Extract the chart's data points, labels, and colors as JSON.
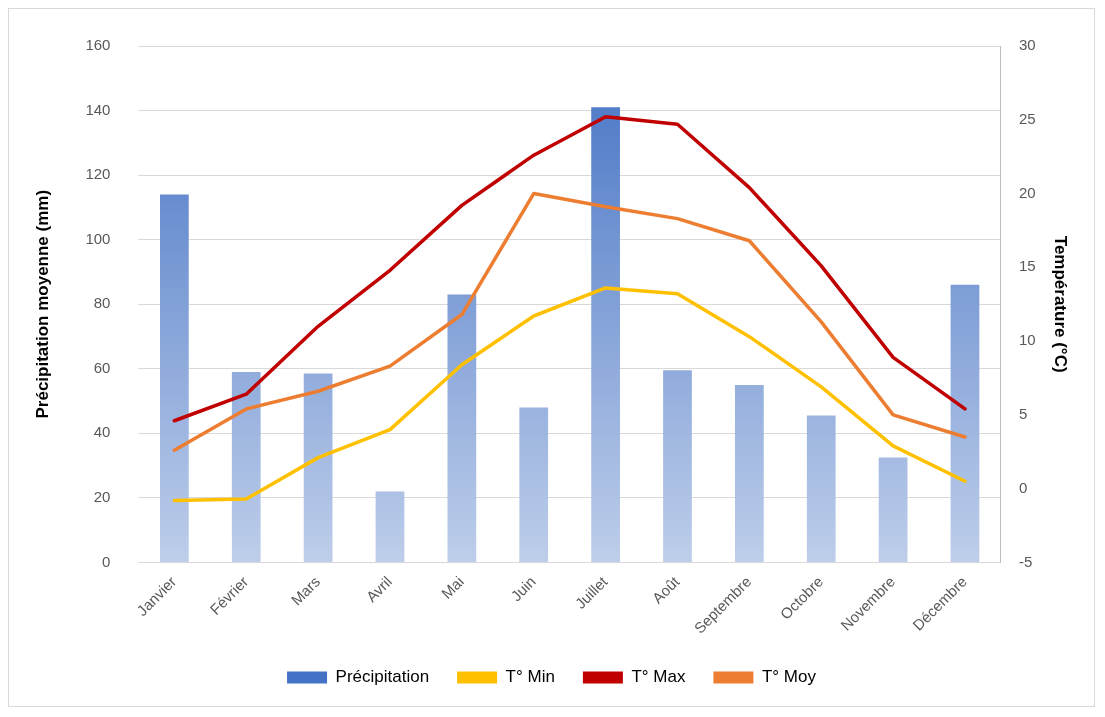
{
  "chart_data": {
    "type": "bar",
    "categories": [
      "Janvier",
      "Février",
      "Mars",
      "Avril",
      "Mai",
      "Juin",
      "Juillet",
      "Août",
      "Septembre",
      "Octobre",
      "Novembre",
      "Décembre"
    ],
    "series": [
      {
        "name": "Précipitation",
        "color": "#4472c4",
        "values": [
          114,
          59,
          58.5,
          22,
          83,
          48,
          141,
          59.5,
          55,
          45.5,
          32.5,
          86
        ]
      },
      {
        "name": "T° Min",
        "type": "line",
        "axis": "y2",
        "color": "#ffc000",
        "values": [
          -0.8,
          -0.7,
          2.1,
          4.0,
          8.4,
          11.7,
          13.6,
          13.2,
          10.3,
          6.9,
          2.9,
          0.5
        ]
      },
      {
        "name": "T° Max",
        "type": "line",
        "axis": "y2",
        "color": "#c00000",
        "values": [
          4.6,
          6.4,
          11.0,
          14.8,
          19.2,
          22.6,
          25.2,
          24.7,
          20.4,
          15.1,
          8.9,
          5.4
        ]
      },
      {
        "name": "T° Moy",
        "type": "line",
        "axis": "y2",
        "color": "#ed7d31",
        "values": [
          2.6,
          5.4,
          6.6,
          8.3,
          11.8,
          20.0,
          19.1,
          18.3,
          16.8,
          11.3,
          5.0,
          3.5
        ]
      }
    ],
    "ylabel": "Précipitation moyenne (mm)",
    "y2label": "Température (°C)",
    "ylim": [
      0,
      160
    ],
    "yticks": [
      0,
      20,
      40,
      60,
      80,
      100,
      120,
      140,
      160
    ],
    "y2lim": [
      -5,
      30
    ],
    "y2ticks": [
      -5,
      0,
      5,
      10,
      15,
      20,
      25,
      30
    ],
    "grid": "y",
    "legend": "bottom",
    "marker": "none",
    "line_style": "solid"
  }
}
